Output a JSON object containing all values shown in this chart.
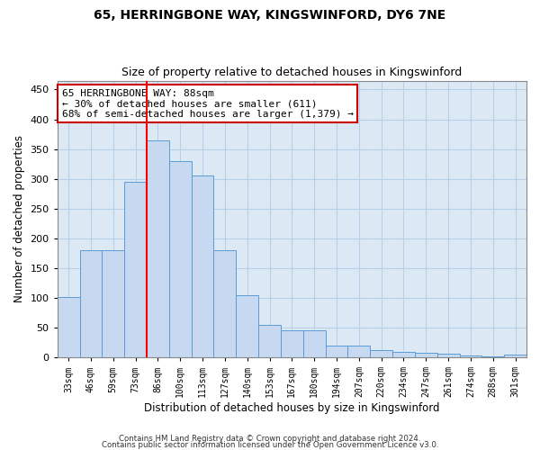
{
  "title1": "65, HERRINGBONE WAY, KINGSWINFORD, DY6 7NE",
  "title2": "Size of property relative to detached houses in Kingswinford",
  "xlabel": "Distribution of detached houses by size in Kingswinford",
  "ylabel": "Number of detached properties",
  "categories": [
    "33sqm",
    "46sqm",
    "59sqm",
    "73sqm",
    "86sqm",
    "100sqm",
    "113sqm",
    "127sqm",
    "140sqm",
    "153sqm",
    "167sqm",
    "180sqm",
    "194sqm",
    "207sqm",
    "220sqm",
    "234sqm",
    "247sqm",
    "261sqm",
    "274sqm",
    "288sqm",
    "301sqm"
  ],
  "values": [
    101,
    180,
    180,
    295,
    365,
    330,
    305,
    180,
    105,
    55,
    45,
    45,
    20,
    20,
    12,
    10,
    8,
    7,
    4,
    2,
    5
  ],
  "bar_color": "#c6d9f0",
  "bar_edge_color": "#5b9bd5",
  "vline_index": 4,
  "annotation_text": "65 HERRINGBONE WAY: 88sqm\n← 30% of detached houses are smaller (611)\n68% of semi-detached houses are larger (1,379) →",
  "annotation_box_color": "#ffffff",
  "annotation_box_edgecolor": "#cc0000",
  "footnote1": "Contains HM Land Registry data © Crown copyright and database right 2024.",
  "footnote2": "Contains public sector information licensed under the Open Government Licence v3.0.",
  "ylim": [
    0,
    465
  ],
  "yticks": [
    0,
    50,
    100,
    150,
    200,
    250,
    300,
    350,
    400,
    450
  ],
  "bg_color": "#ffffff",
  "axes_bg_color": "#dce9f5",
  "grid_color": "#b8cfe8",
  "title1_fontsize": 10,
  "title2_fontsize": 9
}
